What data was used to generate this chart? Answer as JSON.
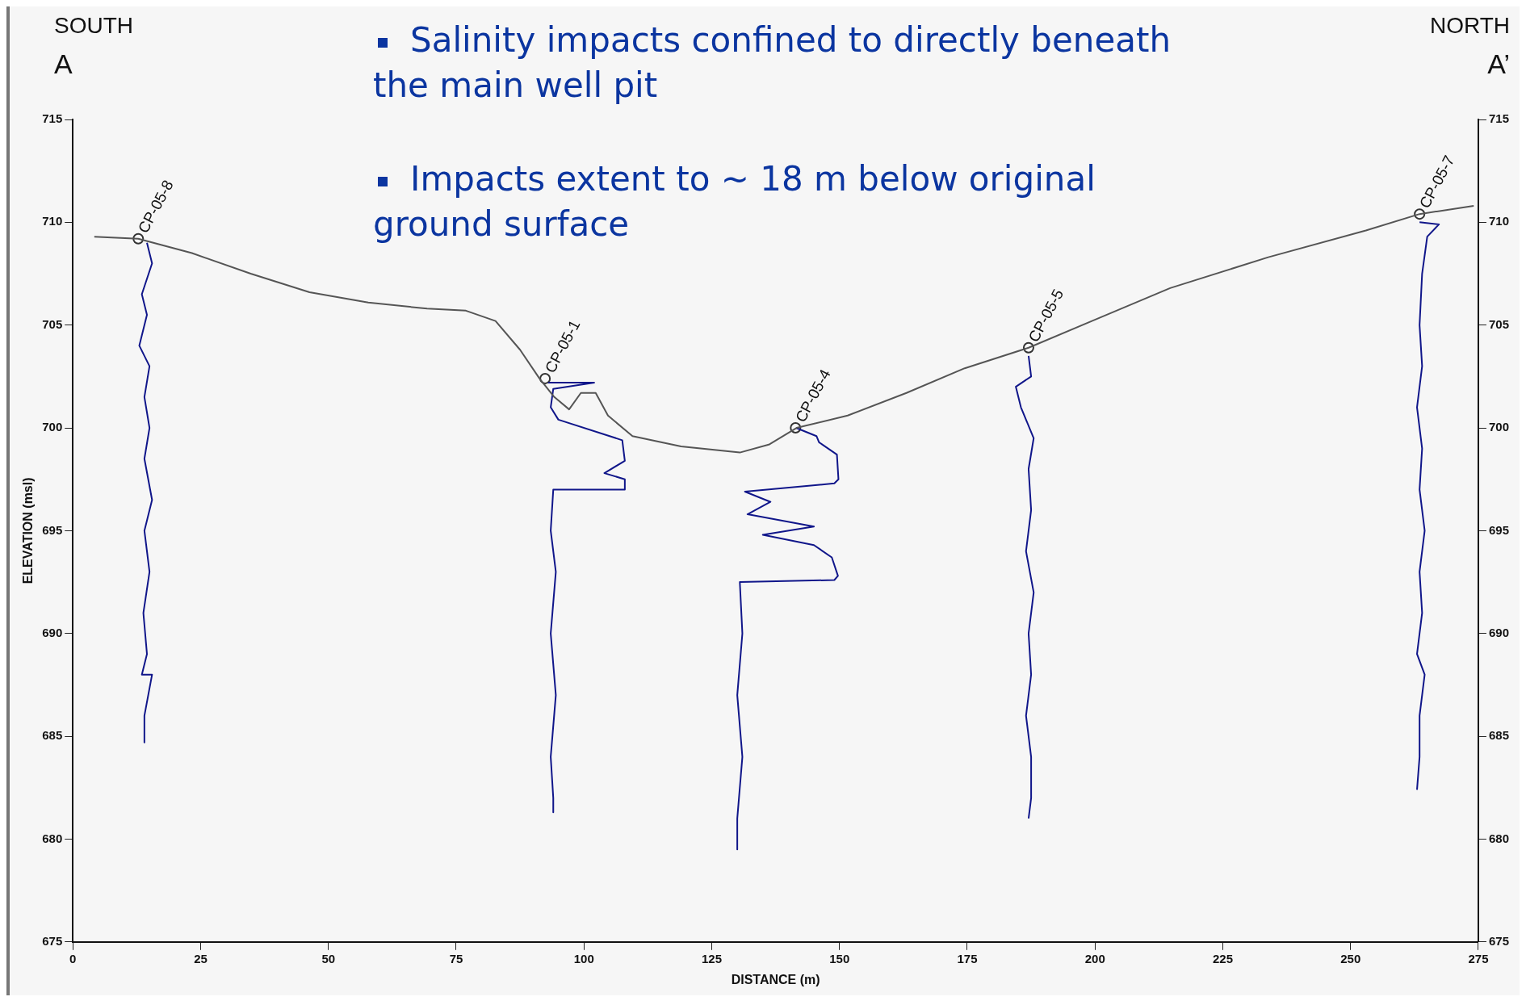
{
  "chart_data": {
    "type": "line",
    "xlabel": "DISTANCE (m)",
    "ylabel": "ELEVATION (msl)",
    "xlim": [
      0,
      275
    ],
    "xticks": [
      0,
      25,
      50,
      75,
      100,
      125,
      150,
      175,
      200,
      225,
      250,
      275
    ],
    "ylim": [
      675,
      715
    ],
    "yticks": [
      675,
      680,
      685,
      690,
      695,
      700,
      705,
      710,
      715
    ],
    "y2lim": [
      675,
      715
    ],
    "y2ticks": [
      675,
      680,
      685,
      690,
      695,
      700,
      705,
      710,
      715
    ],
    "grid": false,
    "legend": false,
    "marker": "none",
    "line_style": "solid",
    "series": [
      {
        "type": "line",
        "color": "#555555",
        "x": [
          4.2,
          12.8,
          23.3,
          34.8,
          46.3,
          57.8,
          69.3,
          76.9,
          82.7,
          87.5,
          91.3,
          94.2,
          97.1,
          99.4,
          102.3,
          104.7,
          109.5,
          119.0,
          130.5,
          136.3,
          141.6,
          151.6,
          163.1,
          174.5,
          187.0,
          199.4,
          214.7,
          233.9,
          253.0,
          263.5,
          274.1
        ],
        "values": [
          709.3,
          709.2,
          708.5,
          707.5,
          706.6,
          706.1,
          705.8,
          705.7,
          705.2,
          703.8,
          702.4,
          701.5,
          700.9,
          701.7,
          701.7,
          700.6,
          699.6,
          699.1,
          698.8,
          699.2,
          700.0,
          700.6,
          701.7,
          702.9,
          703.9,
          705.2,
          706.8,
          708.3,
          709.6,
          710.4,
          710.8
        ]
      },
      {
        "type": "line",
        "color": "#10168a",
        "x": [
          14.5,
          15.5,
          13.5,
          14.5,
          13,
          15,
          14,
          15,
          14,
          15.5,
          14,
          15,
          13.8,
          14.5,
          13.5,
          15.5,
          14,
          14
        ],
        "values": [
          709,
          708,
          706.5,
          705.5,
          704,
          703,
          701.5,
          700,
          698.5,
          696.5,
          695,
          693,
          691,
          689,
          688,
          688,
          686,
          684.7
        ]
      },
      {
        "type": "line",
        "color": "#10168a",
        "x": [
          93,
          102,
          94,
          93.5,
          95,
          107.5,
          108,
          104,
          108,
          108,
          94,
          93.5,
          94.5,
          93.5,
          94.5,
          93.5,
          94,
          94
        ],
        "values": [
          702.2,
          702.2,
          701.9,
          701,
          700.4,
          699.4,
          698.4,
          697.8,
          697.5,
          697.0,
          697.0,
          695,
          693,
          690,
          687,
          684,
          682,
          681.3
        ]
      },
      {
        "type": "line",
        "color": "#10168a",
        "x": [
          141.5,
          145.5,
          146,
          149.5,
          149.8,
          149,
          131.5,
          136.5,
          132,
          145,
          135,
          145,
          148.5,
          149.7,
          149,
          130.5,
          131,
          130,
          131,
          130,
          130
        ],
        "values": [
          700,
          699.6,
          699.3,
          698.7,
          697.5,
          697.3,
          696.9,
          696.4,
          695.8,
          695.2,
          694.8,
          694.3,
          693.7,
          692.8,
          692.6,
          692.5,
          690,
          687,
          684,
          681,
          679.5
        ]
      },
      {
        "type": "line",
        "color": "#10168a",
        "x": [
          187,
          187.5,
          184.5,
          185.5,
          188,
          187,
          187.5,
          186.5,
          188,
          187,
          187.5,
          186.5,
          187.5,
          187.5,
          187
        ],
        "values": [
          703.5,
          702.5,
          702,
          701,
          699.5,
          698,
          696,
          694,
          692,
          690,
          688,
          686,
          684,
          682,
          681
        ]
      },
      {
        "type": "line",
        "color": "#10168a",
        "x": [
          263.5,
          267.3,
          265,
          264,
          263.5,
          264,
          263,
          264,
          263.5,
          264.5,
          263.5,
          264,
          263,
          264.5,
          263.5,
          263.5,
          263
        ],
        "values": [
          710,
          709.9,
          709.3,
          707.5,
          705,
          703,
          701,
          699,
          697,
          695,
          693,
          691,
          689,
          688,
          686,
          684,
          682.4
        ]
      },
      {
        "type": "scatter",
        "marker": "circle",
        "color": "#333333",
        "x": [
          12.8,
          92.4,
          141.4,
          187.0,
          263.5
        ],
        "values": [
          709.2,
          702.4,
          700.0,
          703.9,
          710.4
        ]
      }
    ],
    "annotations": [
      "SOUTH",
      "A",
      "NORTH",
      "A’",
      "Salinity impacts confined to directly beneath the main well pit",
      "Impacts extent to ~ 18 m below original ground surface",
      {
        "text": "CP-05-8",
        "x": 12.8,
        "y": 709.2
      },
      {
        "text": "CP-05-1",
        "x": 92.4,
        "y": 702.4
      },
      {
        "text": "CP-05-4",
        "x": 141.4,
        "y": 700.0
      },
      {
        "text": "CP-05-5",
        "x": 187.0,
        "y": 703.9
      },
      {
        "text": "CP-05-7",
        "x": 263.5,
        "y": 710.4
      }
    ]
  }
}
